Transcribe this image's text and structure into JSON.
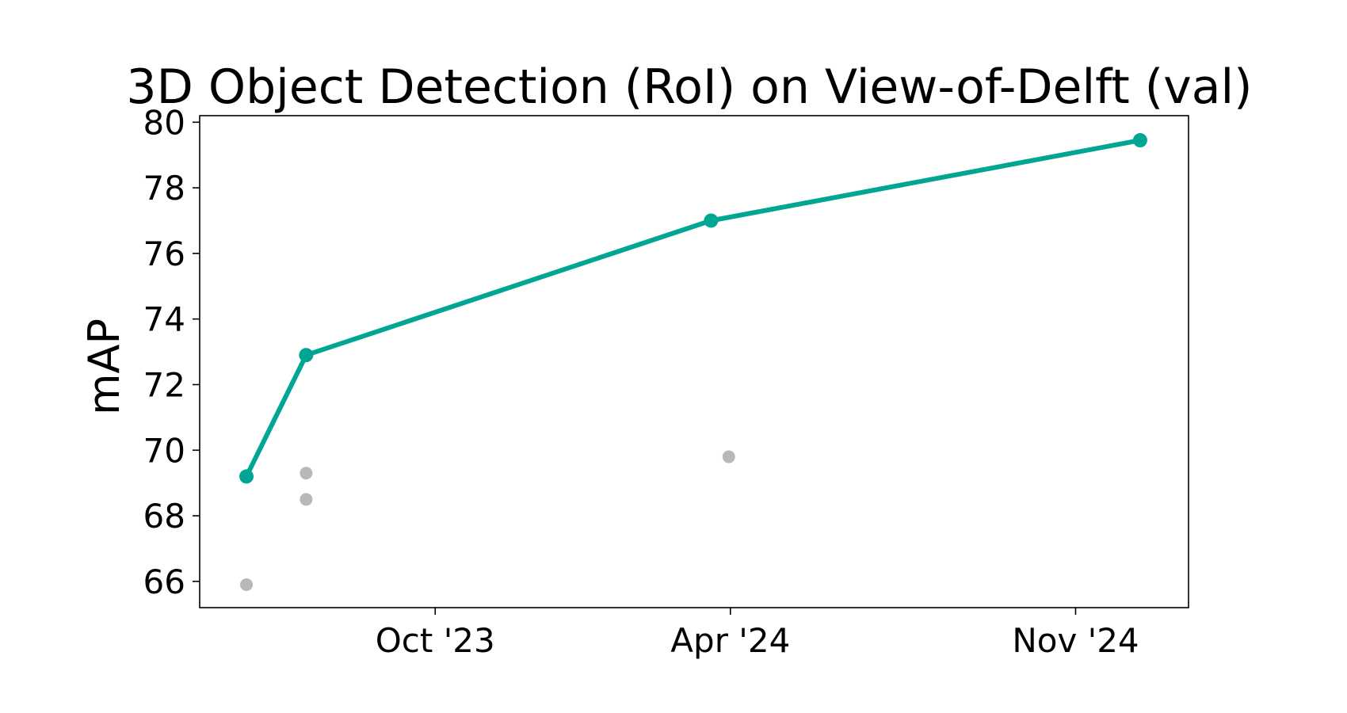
{
  "chart_data": {
    "type": "scatter",
    "title": "3D Object Detection (RoI) on View-of-Delft (val)",
    "xlabel": "",
    "ylabel": "mAP",
    "x_axis_type": "date",
    "xlim": [
      "2023-05-08",
      "2025-01-10"
    ],
    "ylim": [
      65.2,
      80.2
    ],
    "x_ticks": [
      {
        "value": "2023-10-01",
        "label": "Oct '23"
      },
      {
        "value": "2024-04-01",
        "label": "Apr '24"
      },
      {
        "value": "2024-11-01",
        "label": "Nov '24"
      }
    ],
    "y_ticks": [
      {
        "value": 66,
        "label": "66"
      },
      {
        "value": 68,
        "label": "68"
      },
      {
        "value": 70,
        "label": "70"
      },
      {
        "value": 72,
        "label": "72"
      },
      {
        "value": 74,
        "label": "74"
      },
      {
        "value": 76,
        "label": "76"
      },
      {
        "value": 78,
        "label": "78"
      },
      {
        "value": 80,
        "label": "80"
      }
    ],
    "grid": false,
    "legend": "none",
    "series": [
      {
        "role": "state-of-the-art",
        "style": "line+markers",
        "color": "#00a693",
        "points": [
          {
            "x": "2023-06-06",
            "y": 69.2
          },
          {
            "x": "2023-07-13",
            "y": 72.9
          },
          {
            "x": "2024-03-20",
            "y": 77.0
          },
          {
            "x": "2024-12-11",
            "y": 79.45
          }
        ]
      },
      {
        "role": "other-methods",
        "style": "markers",
        "color": "#b8b8b8",
        "points": [
          {
            "x": "2023-06-06",
            "y": 65.9
          },
          {
            "x": "2023-07-13",
            "y": 69.3
          },
          {
            "x": "2023-07-13",
            "y": 68.5
          },
          {
            "x": "2024-03-31",
            "y": 69.8
          }
        ]
      }
    ]
  }
}
